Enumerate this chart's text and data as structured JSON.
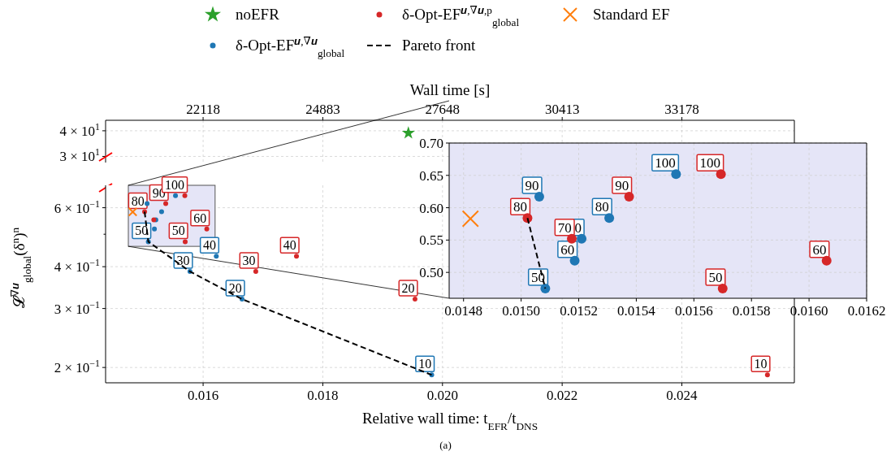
{
  "chart_data": [
    {
      "type": "scatter",
      "x2label": "Wall time [s]",
      "xlim": [
        0.01437,
        0.02588
      ],
      "xticks": [
        {
          "value": 0.016,
          "label": null
        },
        {
          "value": 0.018,
          "label": null
        },
        {
          "value": 0.02,
          "label": null
        },
        {
          "value": 0.022,
          "label": null
        },
        {
          "value": 0.024,
          "label": null
        }
      ],
      "x2lim": [
        19865,
        35776
      ],
      "x2ticks": [
        22118,
        24883,
        27648,
        30413,
        33178
      ],
      "ylim": [
        28,
        45
      ],
      "yticks": [
        {
          "value": 30,
          "label": "3 × 10$^{1}$"
        },
        {
          "value": 40,
          "label": "4 × 10$^{1}$"
        }
      ],
      "log": "y",
      "grid": true,
      "tick_labels": "y",
      "series": [
        {
          "name": "noEFR",
          "type": "scatter",
          "color": "#2ca02c",
          "marker": "star",
          "x": [
            0.01943
          ],
          "values": [
            39
          ]
        }
      ]
    },
    {
      "type": "scatter",
      "legend": "top",
      "xlabel": "Relative wall time: t$_{EFR}$/t$_{DNS}$",
      "ylabel": "𝓛$^{∇𝒖}$$_{global}$(δ$^{n}$)$^{n}$",
      "xlim": [
        0.01437,
        0.02588
      ],
      "xticks": [
        {
          "value": 0.016,
          "label": "0.016"
        },
        {
          "value": 0.018,
          "label": "0.018"
        },
        {
          "value": 0.02,
          "label": "0.020"
        },
        {
          "value": 0.022,
          "label": "0.022"
        },
        {
          "value": 0.024,
          "label": "0.024"
        }
      ],
      "ylim": [
        0.18,
        0.7
      ],
      "yticks": [
        {
          "value": 0.2,
          "label": "2 × 10$^{−1}$"
        },
        {
          "value": 0.3,
          "label": "3 × 10$^{−1}$"
        },
        {
          "value": 0.4,
          "label": "4 × 10$^{−1}$"
        },
        {
          "value": 0.5,
          "label": null
        },
        {
          "value": 0.6,
          "label": "6 × 10$^{−1}$"
        }
      ],
      "log": "y",
      "grid": true,
      "series": [
        {
          "name": "δ-Opt-EF$^{𝒖,∇𝒖}$$_{global}$",
          "type": "scatter",
          "color": "#1f77b4",
          "marker": "circle",
          "x": [
            0.01982,
            0.01665,
            0.01578,
            0.01622,
            0.015084,
            0.015186,
            0.01521,
            0.015306,
            0.015063,
            0.015538
          ],
          "values": [
            0.19,
            0.32,
            0.387,
            0.43,
            0.475,
            0.518,
            0.552,
            0.584,
            0.617,
            0.652
          ]
        },
        {
          "name": "δ-Opt-EF$^{𝒖,∇𝒖,p}$$_{global}$",
          "type": "scatter",
          "color": "#d62728",
          "marker": "circle",
          "x": [
            0.02543,
            0.01954,
            0.01688,
            0.01756,
            0.0157,
            0.016061,
            0.015176,
            0.015022,
            0.015375,
            0.015694
          ],
          "values": [
            0.19,
            0.32,
            0.387,
            0.43,
            0.475,
            0.518,
            0.552,
            0.584,
            0.617,
            0.652
          ]
        },
        {
          "name": "Pareto front",
          "type": "line",
          "color": "#000000",
          "marker": "none",
          "line_style": "dashed",
          "x": [
            0.015022,
            0.015084,
            0.01578,
            0.01665,
            0.01982
          ],
          "values": [
            0.584,
            0.475,
            0.387,
            0.32,
            0.19
          ]
        },
        {
          "name": "Standard EF",
          "type": "scatter",
          "color": "#ff7f0e",
          "marker": "cross",
          "x": [
            0.014824
          ],
          "values": [
            0.583
          ]
        }
      ],
      "annotations": [
        {
          "text": "10",
          "x": 0.01982,
          "y": 0.19
        },
        {
          "text": "20",
          "x": 0.01665,
          "y": 0.32
        },
        {
          "text": "30",
          "x": 0.01578,
          "y": 0.387
        },
        {
          "text": "40",
          "x": 0.01622,
          "y": 0.43
        },
        {
          "text": "50",
          "x": 0.015084,
          "y": 0.475
        },
        {
          "text": "10",
          "x": 0.02543,
          "y": 0.19
        },
        {
          "text": "20",
          "x": 0.01954,
          "y": 0.32
        },
        {
          "text": "30",
          "x": 0.01688,
          "y": 0.387
        },
        {
          "text": "40",
          "x": 0.01756,
          "y": 0.43
        },
        {
          "text": "50",
          "x": 0.0157,
          "y": 0.475
        },
        {
          "text": "60",
          "x": 0.016061,
          "y": 0.518
        },
        {
          "text": "80",
          "x": 0.015022,
          "y": 0.584
        },
        {
          "text": "90",
          "x": 0.015375,
          "y": 0.617
        },
        {
          "text": "100",
          "x": 0.015694,
          "y": 0.652
        },
        "(a)"
      ]
    },
    {
      "type": "scatter",
      "xlim": [
        0.01475,
        0.0162
      ],
      "xticks": [
        {
          "value": 0.0148,
          "label": "0.0148"
        },
        {
          "value": 0.015,
          "label": "0.0150"
        },
        {
          "value": 0.0152,
          "label": "0.0152"
        },
        {
          "value": 0.0154,
          "label": "0.0154"
        },
        {
          "value": 0.0156,
          "label": "0.0156"
        },
        {
          "value": 0.0158,
          "label": "0.0158"
        },
        {
          "value": 0.016,
          "label": "0.0160"
        },
        {
          "value": 0.0162,
          "label": "0.0162"
        }
      ],
      "ylim": [
        0.46,
        0.7
      ],
      "yticks": [
        {
          "value": 0.5,
          "label": "0.50"
        },
        {
          "value": 0.55,
          "label": "0.55"
        },
        {
          "value": 0.6,
          "label": "0.60"
        },
        {
          "value": 0.65,
          "label": "0.65"
        },
        {
          "value": 0.7,
          "label": "0.70"
        }
      ],
      "grid": true,
      "series": [
        {
          "type": "scatter",
          "color": "#1f77b4",
          "marker": "circle",
          "x": [
            0.015084,
            0.015186,
            0.01521,
            0.015306,
            0.015063,
            0.015538
          ],
          "values": [
            0.475,
            0.518,
            0.552,
            0.584,
            0.617,
            0.652
          ]
        },
        {
          "type": "scatter",
          "color": "#d62728",
          "marker": "circle",
          "x": [
            0.0157,
            0.016061,
            0.015176,
            0.015022,
            0.015375,
            0.015694
          ],
          "values": [
            0.475,
            0.518,
            0.552,
            0.584,
            0.617,
            0.652
          ]
        },
        {
          "type": "line",
          "color": "#000000",
          "marker": "none",
          "line_style": "dashed",
          "x": [
            0.015022,
            0.015084
          ],
          "values": [
            0.584,
            0.475
          ]
        },
        {
          "type": "scatter",
          "color": "#ff7f0e",
          "marker": "cross",
          "x": [
            0.014824
          ],
          "values": [
            0.583
          ]
        }
      ],
      "annotations": [
        {
          "text": "50",
          "x": 0.015084,
          "y": 0.475
        },
        {
          "text": "60",
          "x": 0.015186,
          "y": 0.518
        },
        {
          "text": "0",
          "x": 0.01521,
          "y": 0.552
        },
        {
          "text": "80",
          "x": 0.015306,
          "y": 0.584
        },
        {
          "text": "90",
          "x": 0.015063,
          "y": 0.617
        },
        {
          "text": "100",
          "x": 0.015538,
          "y": 0.652
        },
        {
          "text": "50",
          "x": 0.0157,
          "y": 0.475
        },
        {
          "text": "60",
          "x": 0.016061,
          "y": 0.518
        },
        {
          "text": "70",
          "x": 0.015176,
          "y": 0.552
        },
        {
          "text": "80",
          "x": 0.015022,
          "y": 0.584
        },
        {
          "text": "90",
          "x": 0.015375,
          "y": 0.617
        },
        {
          "text": "100",
          "x": 0.015694,
          "y": 0.652
        }
      ]
    }
  ]
}
